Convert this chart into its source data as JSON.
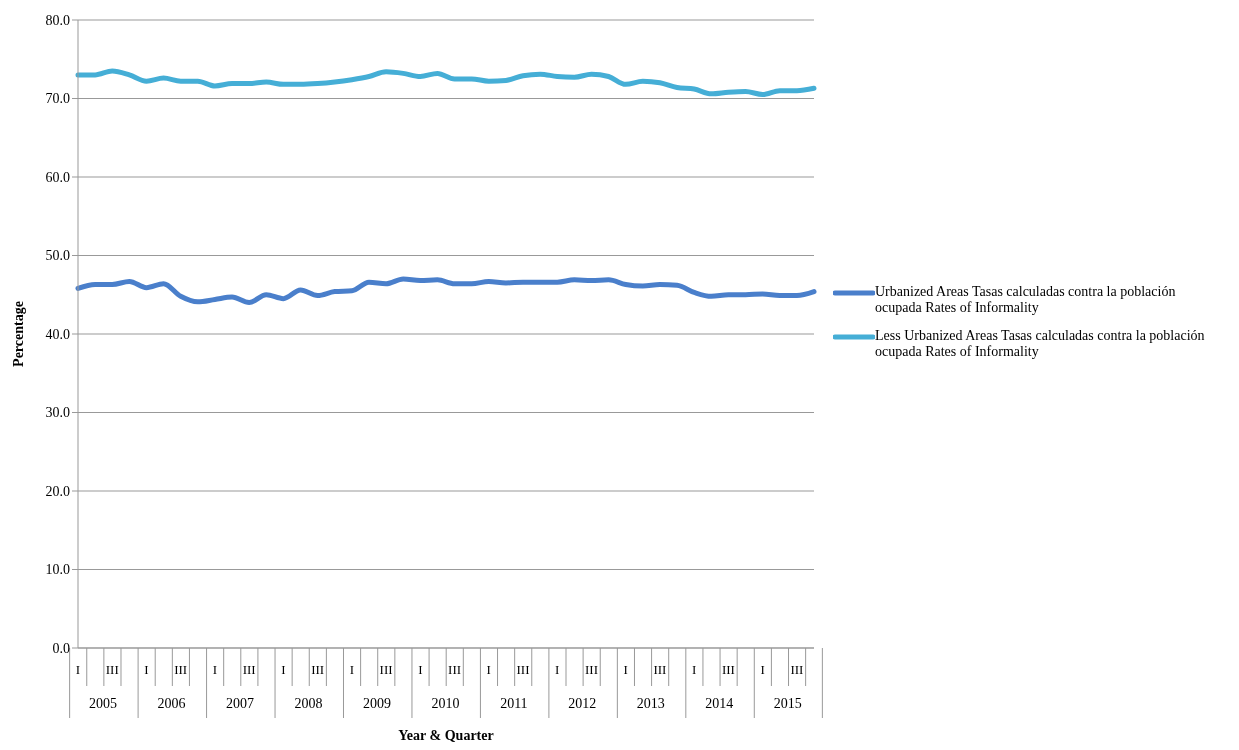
{
  "chart_data": {
    "type": "line",
    "xlabel": "Year & Quarter",
    "ylabel": "Percentage",
    "categories": [
      "I",
      null,
      "III",
      null,
      "I",
      null,
      "III",
      null,
      "I",
      null,
      "III",
      null,
      "I",
      null,
      "III",
      null,
      "I",
      null,
      "III",
      null,
      "I",
      null,
      "III",
      null,
      "I",
      null,
      "III",
      null,
      "I",
      null,
      "III",
      null,
      "I",
      null,
      "III",
      null,
      "I",
      null,
      "III",
      null,
      "I",
      null,
      "III",
      null
    ],
    "annotations": [
      "2005",
      "2006",
      "2007",
      "2008",
      "2009",
      "2010",
      "2011",
      "2012",
      "2013",
      "2014",
      "2015"
    ],
    "series": [
      {
        "name": "Urbanized Areas Tasas calculadas contra la población ocupada Rates of Informality",
        "color": "#4a7fcb",
        "values": [
          45.8,
          46.3,
          46.3,
          46.7,
          45.9,
          46.4,
          44.8,
          44.1,
          44.4,
          44.7,
          44.0,
          45.0,
          44.5,
          45.6,
          44.9,
          45.4,
          45.5,
          46.6,
          46.4,
          47.0,
          46.8,
          46.9,
          46.4,
          46.4,
          46.7,
          46.5,
          46.6,
          46.6,
          46.6,
          46.9,
          46.8,
          46.9,
          46.3,
          46.1,
          46.3,
          46.2,
          45.3,
          44.8,
          45.0,
          45.0,
          45.1,
          44.9,
          44.9,
          45.4
        ]
      },
      {
        "name": "Less Urbanized Areas Tasas calculadas contra la población ocupada Rates of Informality",
        "color": "#45aed6",
        "values": [
          73.0,
          73.0,
          73.5,
          73.0,
          72.2,
          72.6,
          72.2,
          72.2,
          71.6,
          71.9,
          71.9,
          72.1,
          71.8,
          71.8,
          71.9,
          72.1,
          72.4,
          72.8,
          73.4,
          73.2,
          72.8,
          73.2,
          72.5,
          72.5,
          72.2,
          72.3,
          72.9,
          73.1,
          72.8,
          72.7,
          73.1,
          72.8,
          71.8,
          72.2,
          72.0,
          71.4,
          71.2,
          70.6,
          70.8,
          70.9,
          70.5,
          71.0,
          71.0,
          71.3
        ]
      }
    ],
    "ylim": [
      0,
      80
    ],
    "yticks": [
      {
        "value": 0,
        "label": "0.0"
      },
      {
        "value": 10,
        "label": "10.0"
      },
      {
        "value": 20,
        "label": "20.0"
      },
      {
        "value": 30,
        "label": "30.0"
      },
      {
        "value": 40,
        "label": "40.0"
      },
      {
        "value": 50,
        "label": "50.0"
      },
      {
        "value": 60,
        "label": "60.0"
      },
      {
        "value": 70,
        "label": "70.0"
      },
      {
        "value": 80,
        "label": "80.0"
      }
    ],
    "grid": "y",
    "legend": "right",
    "marker": "none",
    "line_style": "solid"
  }
}
